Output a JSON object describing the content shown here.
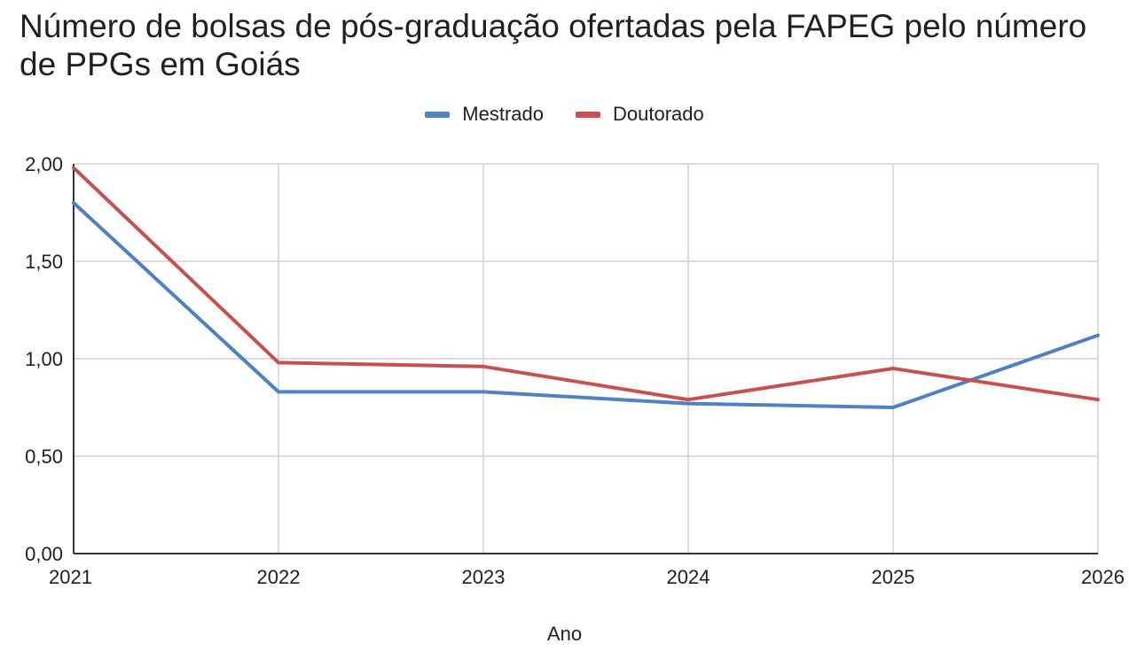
{
  "chart_data": {
    "type": "line",
    "title": "Número de bolsas de pós-graduação ofertadas pela FAPEG pelo número de PPGs em Goiás",
    "xlabel": "Ano",
    "ylabel": "",
    "categories": [
      "2021",
      "2022",
      "2023",
      "2024",
      "2025",
      "2026"
    ],
    "y_ticks": [
      "0,00",
      "0,50",
      "1,00",
      "1,50",
      "2,00"
    ],
    "y_tick_values": [
      0,
      0.5,
      1.0,
      1.5,
      2.0
    ],
    "ylim": [
      0,
      2.0
    ],
    "grid": true,
    "legend_position": "top-center",
    "series": [
      {
        "name": "Mestrado",
        "color": "#4f81c7",
        "values": [
          1.8,
          0.83,
          0.83,
          0.77,
          0.75,
          1.12
        ]
      },
      {
        "name": "Doutorado",
        "color": "#c9504c",
        "values": [
          1.98,
          0.98,
          0.96,
          0.79,
          0.95,
          0.79
        ]
      }
    ]
  }
}
